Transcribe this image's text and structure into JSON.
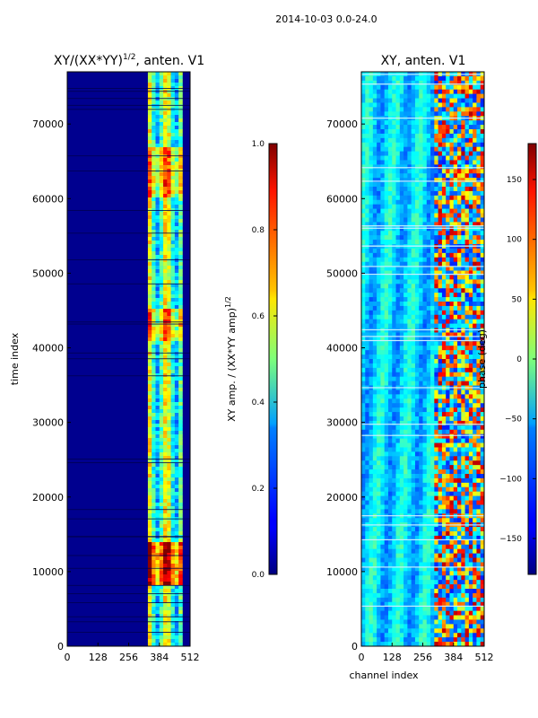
{
  "figure": {
    "suptitle": "2014-10-03 0.0-24.0"
  },
  "chart_data": [
    {
      "type": "heatmap",
      "title": "XY/(XX*YY)^{1/2}, anten. V1",
      "title_main": "XY/(XX*YY)",
      "title_sup": "1/2",
      "title_rest": ", anten. V1",
      "xlabel": "",
      "ylabel": "time index",
      "xlim": [
        0,
        512
      ],
      "ylim": [
        0,
        77000
      ],
      "xticks": [
        0,
        128,
        256,
        384,
        512
      ],
      "yticks": [
        0,
        10000,
        20000,
        30000,
        40000,
        50000,
        60000,
        70000
      ],
      "colorbar": {
        "label": "XY amp. / (XX*YY amp)^{1/2}",
        "label_main": "XY amp. / (XX*YY amp)",
        "label_sup": "1/2",
        "range": [
          0.0,
          1.0
        ],
        "ticks": [
          0.0,
          0.2,
          0.4,
          0.6,
          0.8,
          1.0
        ],
        "tick_labels": [
          "0.0",
          "0.2",
          "0.4",
          "0.6",
          "0.8",
          "1.0"
        ]
      }
    },
    {
      "type": "heatmap",
      "title": "XY, anten. V1",
      "xlabel": "channel index",
      "ylabel": "",
      "xlim": [
        0,
        512
      ],
      "ylim": [
        0,
        77000
      ],
      "xticks": [
        0,
        128,
        256,
        384,
        512
      ],
      "yticks": [
        0,
        10000,
        20000,
        30000,
        40000,
        50000,
        60000,
        70000
      ],
      "colorbar": {
        "label": "phase (deg)",
        "range": [
          -180,
          180
        ],
        "ticks": [
          -150,
          -100,
          -50,
          0,
          50,
          100,
          150
        ],
        "tick_labels": [
          "−150",
          "−100",
          "−50",
          "0",
          "50",
          "100",
          "150"
        ]
      }
    }
  ]
}
